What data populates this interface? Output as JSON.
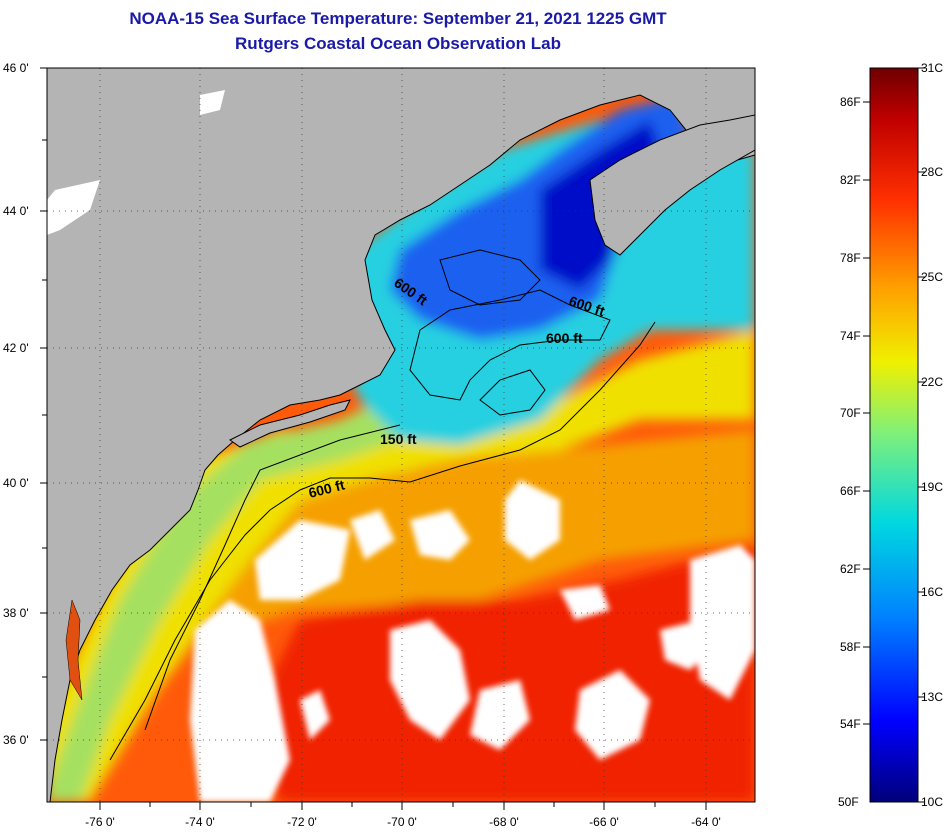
{
  "title_line1": "NOAA-15 Sea Surface Temperature:  September 21, 2021 1225 GMT",
  "title_line2": "Rutgers Coastal Ocean Observation Lab",
  "lat_labels": [
    "46 0'",
    "44 0'",
    "42 0'",
    "40 0'",
    "38 0'",
    "36 0'"
  ],
  "lon_labels": [
    "-76 0'",
    "-74 0'",
    "-72 0'",
    "-70 0'",
    "-68 0'",
    "-66 0'",
    "-64 0'"
  ],
  "contour_labels": [
    "600 ft",
    "600 ft",
    "600 ft",
    "150 ft",
    "600 ft"
  ],
  "colorbar": {
    "fahrenheit_labels": [
      "86F",
      "82F",
      "78F",
      "74F",
      "70F",
      "66F",
      "62F",
      "58F",
      "54F",
      "50F"
    ],
    "celsius_labels": [
      "31C",
      "28C",
      "25C",
      "22C",
      "19C",
      "16C",
      "13C",
      "10C"
    ],
    "colors": [
      "#00007a",
      "#0000ff",
      "#0080ff",
      "#00d8e0",
      "#7cf07c",
      "#f0f000",
      "#ffa000",
      "#ff3000",
      "#c00000",
      "#6e0000"
    ]
  },
  "colors": {
    "land": "#b4b4b4",
    "cloud": "#ffffff",
    "title": "#1a1aa6"
  }
}
